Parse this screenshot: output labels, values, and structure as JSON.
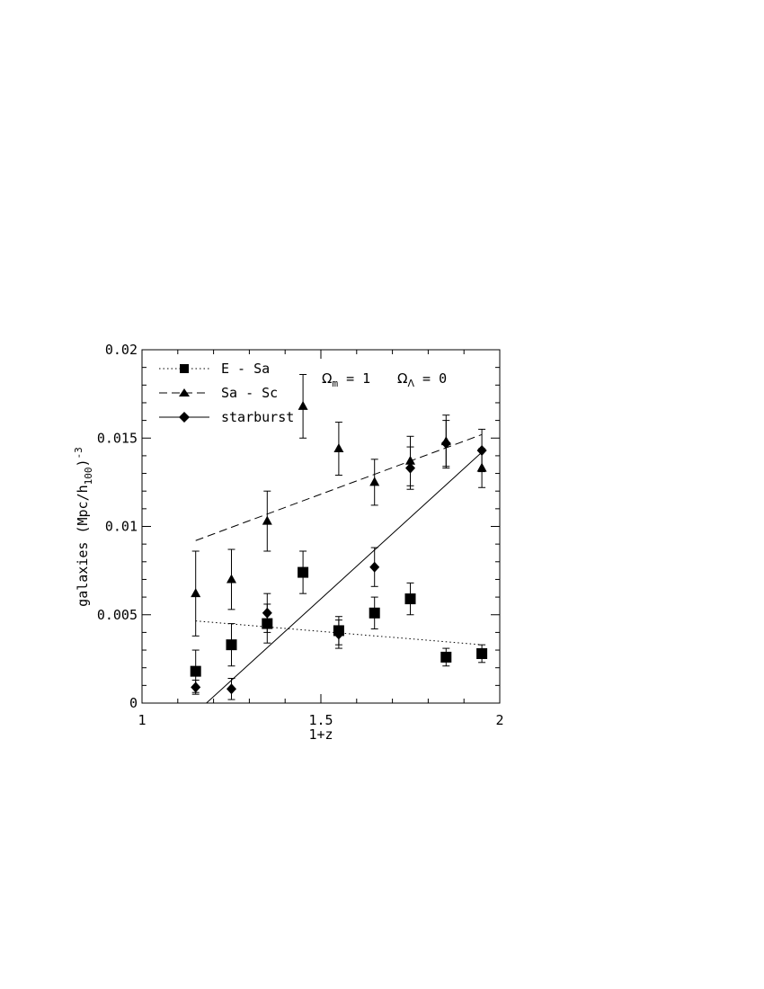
{
  "chart_data": {
    "type": "scatter",
    "title": "",
    "xlabel": "1+z",
    "ylabel": "galaxies (Mpc/h",
    "ylabel_sub": "100",
    "ylabel_tail": ")",
    "ylabel_sup": "-3",
    "xlim": [
      1,
      2
    ],
    "ylim": [
      0,
      0.02
    ],
    "xticks": [
      1,
      1.5,
      2
    ],
    "xtick_labels": [
      "1",
      "1.5",
      "2"
    ],
    "yticks": [
      0,
      0.005,
      0.01,
      0.015,
      0.02
    ],
    "ytick_labels": [
      "0",
      "0.005",
      "0.01",
      "0.015",
      "0.02"
    ],
    "grid": false,
    "legend_position": "top-left",
    "annotation": {
      "omega_m_symbol": "Ω",
      "omega_m_sub": "m",
      "omega_m_value": " = 1",
      "omega_l_symbol": "Ω",
      "omega_l_sub": "Λ",
      "omega_l_value": " = 0"
    },
    "series": [
      {
        "name": "E - Sa",
        "marker": "square",
        "line_style": "dotted",
        "x": [
          1.15,
          1.25,
          1.35,
          1.45,
          1.55,
          1.65,
          1.75,
          1.85,
          1.95
        ],
        "y": [
          0.0018,
          0.0033,
          0.0045,
          0.0074,
          0.0041,
          0.0051,
          0.0059,
          0.0026,
          0.0028
        ],
        "err": [
          0.0012,
          0.0012,
          0.0011,
          0.0012,
          0.0008,
          0.0009,
          0.0009,
          0.0005,
          0.0005
        ],
        "fit": [
          [
            1.15,
            0.00465
          ],
          [
            1.95,
            0.0033
          ]
        ]
      },
      {
        "name": "Sa - Sc",
        "marker": "triangle",
        "line_style": "dashed",
        "x": [
          1.15,
          1.25,
          1.35,
          1.45,
          1.55,
          1.65,
          1.75,
          1.85,
          1.95
        ],
        "y": [
          0.0062,
          0.007,
          0.0103,
          0.0168,
          0.0144,
          0.0125,
          0.0137,
          0.0148,
          0.0133
        ],
        "err": [
          0.0024,
          0.0017,
          0.0017,
          0.0018,
          0.0015,
          0.0013,
          0.0014,
          0.0015,
          0.0011
        ],
        "fit": [
          [
            1.15,
            0.0092
          ],
          [
            1.95,
            0.0152
          ]
        ]
      },
      {
        "name": "starburst",
        "marker": "diamond",
        "line_style": "solid",
        "x": [
          1.15,
          1.25,
          1.35,
          1.45,
          1.55,
          1.65,
          1.75,
          1.85,
          1.95
        ],
        "y": [
          0.0009,
          0.0008,
          0.0051,
          null,
          0.0039,
          0.0077,
          0.0133,
          0.0147,
          0.0143
        ],
        "err": [
          0.0004,
          0.0006,
          0.0011,
          null,
          0.0008,
          0.0011,
          0.0012,
          0.0013,
          0.0012
        ],
        "fit": [
          [
            1.18,
            0.0
          ],
          [
            1.95,
            0.0142
          ]
        ]
      }
    ]
  }
}
